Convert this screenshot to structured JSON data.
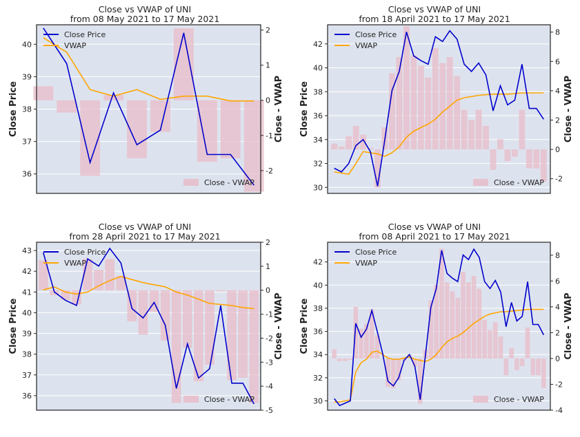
{
  "chart_data": [
    {
      "type": "line",
      "title_line1": "Close vs VWAP of UNI",
      "title_line2": "from 08 May 2021 to 17 May 2021",
      "ylabel": "Close Price",
      "ylabel_right": "Close - VWAP",
      "ylim": [
        35.4,
        40.6
      ],
      "yticks": [
        36,
        37,
        38,
        39,
        40
      ],
      "ylim_right": [
        -2.65,
        2.15
      ],
      "yticks_right": [
        -2,
        -1,
        0,
        1,
        2
      ],
      "legend": {
        "placement": "top-left",
        "entries": [
          "Close Price",
          "VWAP"
        ]
      },
      "legend_right": {
        "placement": "bottom-right",
        "entries": [
          "Close - VWAP"
        ]
      },
      "colors": {
        "close": "#0000cc",
        "vwap": "#ffa500",
        "diff": "#e8bcc8",
        "background": "#dde3ee"
      },
      "close": [
        40.5,
        39.4,
        36.35,
        38.5,
        36.9,
        37.35,
        40.35,
        36.6,
        36.6,
        35.65
      ],
      "vwap": [
        40.2,
        39.75,
        38.6,
        38.4,
        38.6,
        38.3,
        38.4,
        38.4,
        38.25,
        38.25
      ],
      "diff": [
        0.4,
        -0.35,
        -2.15,
        0.15,
        -1.65,
        -0.9,
        2.05,
        -1.75,
        -1.65,
        -2.6
      ]
    },
    {
      "type": "line",
      "title_line1": "Close vs VWAP of UNI",
      "title_line2": "from 18 April 2021 to 17 May 2021",
      "ylabel": "Close Price",
      "ylabel_right": "Close - VWAP",
      "ylim": [
        29.5,
        43.6
      ],
      "yticks": [
        30,
        32,
        34,
        36,
        38,
        40,
        42
      ],
      "ylim_right": [
        -3.0,
        8.5
      ],
      "yticks_right": [
        -2,
        0,
        2,
        4,
        6,
        8
      ],
      "legend": {
        "placement": "top-left",
        "entries": [
          "Close Price",
          "VWAP"
        ]
      },
      "legend_right": {
        "placement": "bottom-right",
        "entries": [
          "Close - VWAP"
        ]
      },
      "colors": {
        "close": "#0000cc",
        "vwap": "#ffa500",
        "diff": "#e8bcc8",
        "background": "#dde3ee"
      },
      "close": [
        31.6,
        31.3,
        32.0,
        33.5,
        34.0,
        33.0,
        30.1,
        34.0,
        38.1,
        39.7,
        43.0,
        41.0,
        40.6,
        40.3,
        42.6,
        42.2,
        43.1,
        42.4,
        40.3,
        39.7,
        40.4,
        39.4,
        36.4,
        38.5,
        36.9,
        37.3,
        40.3,
        36.6,
        36.6,
        35.7
      ],
      "vwap": [
        31.3,
        31.2,
        31.1,
        32.0,
        33.0,
        32.9,
        32.8,
        32.6,
        32.9,
        33.4,
        34.2,
        34.7,
        35.0,
        35.3,
        35.7,
        36.3,
        36.8,
        37.3,
        37.5,
        37.6,
        37.7,
        37.75,
        37.8,
        37.8,
        37.8,
        37.85,
        37.9,
        37.9,
        37.9,
        37.9
      ],
      "diff": [
        0.4,
        0.2,
        0.9,
        1.6,
        1.0,
        0.1,
        -2.6,
        1.5,
        5.2,
        6.3,
        8.4,
        6.4,
        5.7,
        4.9,
        6.9,
        5.9,
        6.3,
        5.0,
        2.7,
        2.0,
        2.7,
        1.6,
        -1.4,
        0.7,
        -0.8,
        -0.5,
        2.7,
        -1.3,
        -1.3,
        -2.2
      ]
    },
    {
      "type": "line",
      "title_line1": "Close vs VWAP of UNI",
      "title_line2": "from 28 April 2021 to 17 May 2021",
      "ylabel": "Close Price",
      "ylabel_right": "Close - VWAP",
      "ylim": [
        35.3,
        43.4
      ],
      "yticks": [
        36,
        37,
        38,
        39,
        40,
        41,
        42,
        43
      ],
      "ylim_right": [
        -5.0,
        2.0
      ],
      "yticks_right": [
        -5,
        -4,
        -3,
        -2,
        -1,
        0,
        1,
        2
      ],
      "legend": {
        "placement": "top-left",
        "entries": [
          "Close Price",
          "VWAP"
        ]
      },
      "legend_right": {
        "placement": "bottom-right",
        "entries": [
          "Close - VWAP"
        ]
      },
      "colors": {
        "close": "#0000cc",
        "vwap": "#ffa500",
        "diff": "#e8bcc8",
        "background": "#dde3ee"
      },
      "close": [
        42.9,
        41.0,
        40.6,
        40.35,
        42.6,
        42.25,
        43.1,
        42.4,
        40.2,
        39.75,
        40.5,
        39.4,
        36.35,
        38.5,
        36.85,
        37.3,
        40.35,
        36.6,
        36.6,
        35.6
      ],
      "vwap": [
        41.1,
        41.25,
        41.0,
        40.9,
        41.0,
        41.3,
        41.55,
        41.75,
        41.6,
        41.45,
        41.35,
        41.25,
        41.0,
        40.85,
        40.65,
        40.45,
        40.4,
        40.35,
        40.25,
        40.2
      ],
      "diff": [
        1.25,
        -0.2,
        -0.4,
        -0.6,
        1.3,
        0.85,
        1.3,
        0.6,
        -1.3,
        -1.85,
        -0.9,
        -2.1,
        -4.7,
        -2.4,
        -3.8,
        -3.1,
        -0.05,
        -3.75,
        -3.65,
        -4.7
      ]
    },
    {
      "type": "line",
      "title_line1": "Close vs VWAP of UNI",
      "title_line2": "from 08 April 2021 to 17 May 2021",
      "ylabel": "Close Price",
      "ylabel_right": "Close - VWAP",
      "ylim": [
        29.2,
        43.7
      ],
      "yticks": [
        30,
        32,
        34,
        36,
        38,
        40,
        42
      ],
      "ylim_right": [
        -4.0,
        9.0
      ],
      "yticks_right": [
        -4,
        -2,
        0,
        2,
        4,
        6,
        8
      ],
      "legend": {
        "placement": "top-left",
        "entries": [
          "Close Price",
          "VWAP"
        ]
      },
      "legend_right": {
        "placement": "bottom-right",
        "entries": [
          "Close - VWAP"
        ]
      },
      "colors": {
        "close": "#0000cc",
        "vwap": "#ffa500",
        "diff": "#e8bcc8",
        "background": "#dde3ee"
      },
      "close": [
        30.2,
        29.6,
        29.8,
        30.0,
        36.7,
        35.5,
        36.2,
        37.8,
        36.0,
        34.1,
        31.7,
        31.3,
        32.0,
        33.5,
        34.0,
        33.0,
        30.1,
        34.0,
        38.1,
        39.7,
        43.0,
        41.0,
        40.6,
        40.3,
        42.6,
        42.2,
        43.1,
        42.4,
        40.3,
        39.7,
        40.4,
        39.4,
        36.4,
        38.5,
        36.9,
        37.3,
        40.3,
        36.6,
        36.6,
        35.7
      ],
      "vwap": [
        29.9,
        29.9,
        30.0,
        30.1,
        32.5,
        33.3,
        33.6,
        34.2,
        34.3,
        34.0,
        33.7,
        33.6,
        33.6,
        33.7,
        33.8,
        33.6,
        33.5,
        33.4,
        33.6,
        34.0,
        34.6,
        35.1,
        35.4,
        35.6,
        35.9,
        36.3,
        36.7,
        37.0,
        37.3,
        37.5,
        37.6,
        37.7,
        37.7,
        37.75,
        37.8,
        37.85,
        37.9,
        37.9,
        37.9,
        37.9
      ],
      "diff": [
        0.7,
        -0.2,
        -0.2,
        -0.1,
        4.0,
        2.3,
        2.7,
        3.8,
        1.8,
        0.0,
        -2.2,
        -2.3,
        -1.7,
        -0.2,
        0.3,
        -0.6,
        -3.5,
        0.7,
        4.5,
        5.7,
        8.5,
        5.9,
        5.2,
        4.7,
        6.7,
        5.9,
        6.4,
        5.4,
        3.0,
        2.2,
        2.8,
        1.7,
        -1.3,
        0.8,
        -0.9,
        -0.6,
        2.4,
        -1.3,
        -1.3,
        -2.3
      ]
    }
  ]
}
